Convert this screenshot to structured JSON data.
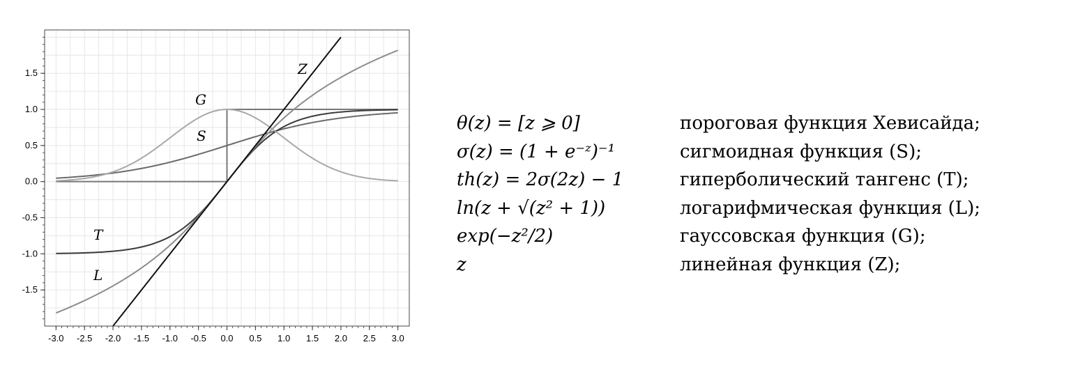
{
  "chart_data": {
    "type": "line",
    "title": "",
    "xlabel": "",
    "ylabel": "",
    "xlim": [
      -3.2,
      3.2
    ],
    "ylim": [
      -2.0,
      2.1
    ],
    "grid": true,
    "x_ticks": [
      -3.0,
      -2.5,
      -2.0,
      -1.5,
      -1.0,
      -0.5,
      0.0,
      0.5,
      1.0,
      1.5,
      2.0,
      2.5,
      3.0
    ],
    "x_tick_labels": [
      "-3.0",
      "-2.5",
      "-2.0",
      "-1.5",
      "-1.0",
      "-0.5",
      "0.0",
      "0.5",
      "1.0",
      "1.5",
      "2.0",
      "2.5",
      "3.0"
    ],
    "y_ticks": [
      1.5,
      1.0,
      0.5,
      0.0,
      -0.5,
      -1.0,
      -1.5
    ],
    "y_tick_labels": [
      "1.5",
      "1.0",
      "0.5",
      "0.0",
      "-0.5",
      "-1.0",
      "-1.5"
    ],
    "series": [
      {
        "name": "θ",
        "function": "heaviside",
        "x_range": [
          -3,
          3
        ],
        "color": "#777777"
      },
      {
        "name": "S",
        "function": "sigmoid",
        "x_range": [
          -3,
          3
        ],
        "color": "#6a6a6a"
      },
      {
        "name": "T",
        "function": "tanh",
        "x_range": [
          -3,
          3
        ],
        "color": "#3a3a3a"
      },
      {
        "name": "L",
        "function": "asinh",
        "x_range": [
          -3,
          3
        ],
        "color": "#8c8c8c"
      },
      {
        "name": "G",
        "function": "gaussian",
        "x_range": [
          -3,
          3
        ],
        "color": "#a8a8a8"
      },
      {
        "name": "Z",
        "function": "linear",
        "x_range": [
          -2,
          2
        ],
        "color": "#111111"
      }
    ]
  },
  "formulas": [
    {
      "formula": "θ(z) = [z ⩾ 0]",
      "description": "пороговая функция Хевисайда;"
    },
    {
      "formula": "σ(z) = (1 + e⁻ᶻ)⁻¹",
      "description": "сигмоидная функция (S);"
    },
    {
      "formula": "th(z) = 2σ(2z) − 1",
      "description": "гиперболический тангенс (T);"
    },
    {
      "formula": "ln(z + √(z² + 1))",
      "description": "логарифмическая функция (L);"
    },
    {
      "formula": "exp(−z²/2)",
      "description": "гауссовская функция (G);"
    },
    {
      "formula": "z",
      "description": "линейная функция (Z);"
    }
  ]
}
